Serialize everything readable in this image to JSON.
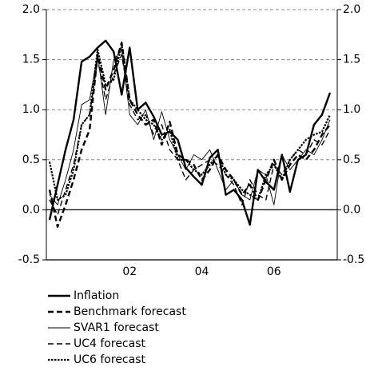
{
  "chart_data": {
    "type": "line",
    "categories": [
      null,
      null,
      null,
      null,
      null,
      null,
      null,
      null,
      null,
      null,
      "02",
      null,
      null,
      null,
      null,
      null,
      null,
      null,
      null,
      "04",
      null,
      null,
      null,
      null,
      null,
      null,
      null,
      null,
      "06",
      null,
      null,
      null,
      null,
      null,
      null,
      null
    ],
    "ylim": [
      -0.5,
      2.0
    ],
    "yticks": [
      {
        "value": -0.5,
        "label": "-0.5"
      },
      {
        "value": 0,
        "label": "0.0"
      },
      {
        "value": 0.5,
        "label": "0.5"
      },
      {
        "value": 1,
        "label": "1.0"
      },
      {
        "value": 1.5,
        "label": "1.5"
      },
      {
        "value": 2,
        "label": "2.0"
      }
    ],
    "grid": true,
    "series": [
      {
        "name": "Inflation",
        "color": "#000000",
        "style": "thick",
        "values": [
          -0.1,
          0.25,
          0.6,
          0.9,
          1.48,
          1.53,
          1.62,
          1.69,
          1.58,
          1.15,
          1.62,
          1.0,
          1.07,
          0.93,
          0.75,
          0.78,
          0.7,
          0.42,
          0.33,
          0.25,
          0.52,
          0.6,
          0.15,
          0.2,
          0.1,
          -0.15,
          0.4,
          0.28,
          0.2,
          0.55,
          0.18,
          0.5,
          0.55,
          0.85,
          0.95,
          1.17
        ]
      },
      {
        "name": "Benchmark forecast",
        "color": "#000000",
        "style": "thick-dashed",
        "values": [
          0.2,
          -0.17,
          0.05,
          0.3,
          0.6,
          0.8,
          1.55,
          1.2,
          1.4,
          1.67,
          1.1,
          0.95,
          0.85,
          0.9,
          0.65,
          0.88,
          0.55,
          0.5,
          0.45,
          0.3,
          0.4,
          0.55,
          0.4,
          0.3,
          0.15,
          0.25,
          0.1,
          0.3,
          0.5,
          0.3,
          0.45,
          0.55,
          0.5,
          0.6,
          0.75,
          0.85
        ]
      },
      {
        "name": "SVAR1 forecast",
        "color": "#000000",
        "style": "thin",
        "values": [
          0.15,
          0.05,
          0.3,
          0.6,
          1.05,
          1.1,
          1.55,
          0.95,
          1.5,
          1.6,
          0.95,
          0.85,
          1.0,
          0.7,
          0.98,
          0.7,
          0.55,
          0.4,
          0.55,
          0.5,
          0.6,
          0.4,
          0.2,
          0.3,
          0.15,
          0.1,
          0.4,
          0.35,
          0.05,
          0.55,
          0.4,
          0.5,
          0.6,
          0.55,
          0.7,
          0.9
        ]
      },
      {
        "name": "UC4 forecast",
        "color": "#000000",
        "style": "dashed",
        "values": [
          0.1,
          -0.05,
          0.2,
          0.45,
          0.85,
          0.95,
          1.5,
          1.1,
          1.35,
          1.55,
          1.05,
          0.9,
          0.95,
          0.75,
          0.85,
          0.6,
          0.5,
          0.3,
          0.4,
          0.45,
          0.5,
          0.45,
          0.35,
          0.25,
          0.05,
          0.3,
          0.15,
          0.1,
          0.45,
          0.35,
          0.5,
          0.6,
          0.55,
          0.7,
          0.65,
          0.8
        ]
      },
      {
        "name": "UC6 forecast",
        "color": "#000000",
        "style": "dotted",
        "values": [
          0.48,
          0.1,
          0.15,
          0.4,
          0.85,
          0.95,
          1.6,
          1.25,
          1.3,
          1.65,
          1.1,
          1.0,
          0.9,
          0.85,
          0.7,
          0.8,
          0.5,
          0.5,
          0.4,
          0.35,
          0.45,
          0.55,
          0.35,
          0.3,
          0.2,
          0.15,
          0.1,
          0.35,
          0.45,
          0.3,
          0.5,
          0.6,
          0.7,
          0.75,
          0.78,
          0.95
        ]
      }
    ]
  }
}
